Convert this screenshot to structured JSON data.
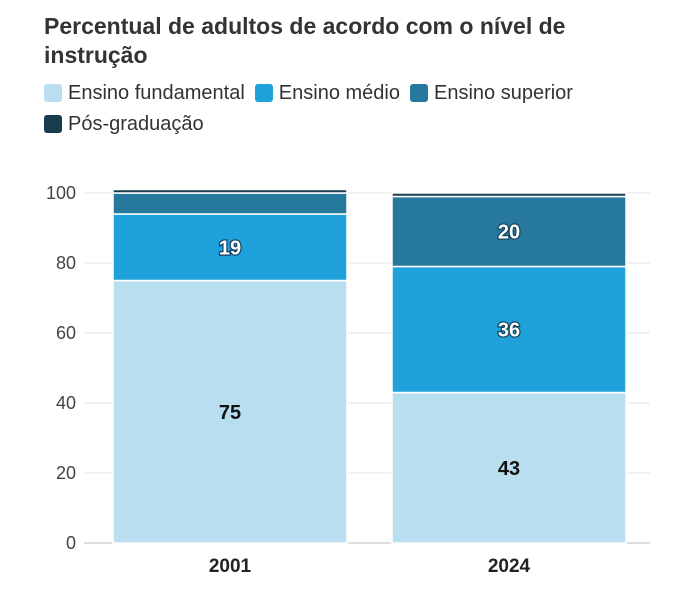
{
  "chart_data": {
    "type": "bar",
    "stacked": true,
    "title": "Percentual de adultos de acordo com o nível de instrução",
    "categories": [
      "2001",
      "2024"
    ],
    "series": [
      {
        "name": "Ensino fundamental",
        "values": [
          75,
          43
        ],
        "color": "#b9def0"
      },
      {
        "name": "Ensino médio",
        "values": [
          19,
          36
        ],
        "color": "#1fa2dc"
      },
      {
        "name": "Ensino superior",
        "values": [
          6,
          20
        ],
        "color": "#26799d"
      },
      {
        "name": "Pós-graduação",
        "values": [
          1,
          1
        ],
        "color": "#183d4e"
      }
    ],
    "data_labels": [
      {
        "series": 0,
        "category": 0,
        "text": "75"
      },
      {
        "series": 0,
        "category": 1,
        "text": "43"
      },
      {
        "series": 1,
        "category": 0,
        "text": "19"
      },
      {
        "series": 1,
        "category": 1,
        "text": "36"
      },
      {
        "series": 2,
        "category": 1,
        "text": "20"
      }
    ],
    "yticks": [
      "0",
      "20",
      "40",
      "60",
      "80",
      "100"
    ],
    "ylim": [
      0,
      100
    ],
    "grid": true,
    "legend_position": "top"
  }
}
